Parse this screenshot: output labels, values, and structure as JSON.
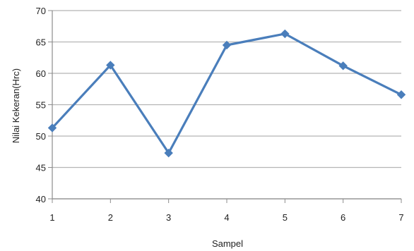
{
  "chart_data": {
    "type": "line",
    "title": "",
    "xlabel": "Sampel",
    "ylabel": "Nilai Kekeran(Hrc)",
    "categories": [
      "1",
      "2",
      "3",
      "4",
      "5",
      "6",
      "7"
    ],
    "series": [
      {
        "values": [
          51.3,
          61.3,
          47.3,
          64.5,
          66.3,
          61.2,
          56.6
        ],
        "color": "#4a7ebb",
        "marker": "diamond"
      }
    ],
    "ylim": [
      40,
      70
    ],
    "yticks": [
      "40",
      "45",
      "50",
      "55",
      "60",
      "65",
      "70"
    ],
    "grid": "horizontal",
    "legend": "none"
  }
}
